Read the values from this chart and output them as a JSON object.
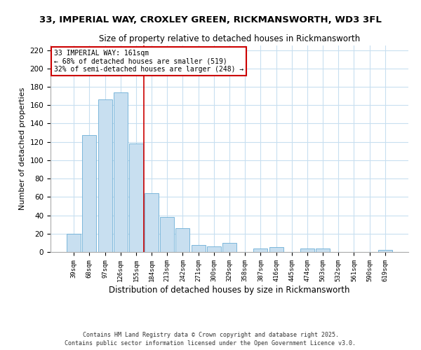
{
  "title1": "33, IMPERIAL WAY, CROXLEY GREEN, RICKMANSWORTH, WD3 3FL",
  "title2": "Size of property relative to detached houses in Rickmansworth",
  "xlabel": "Distribution of detached houses by size in Rickmansworth",
  "ylabel": "Number of detached properties",
  "bar_labels": [
    "39sqm",
    "68sqm",
    "97sqm",
    "126sqm",
    "155sqm",
    "184sqm",
    "213sqm",
    "242sqm",
    "271sqm",
    "300sqm",
    "329sqm",
    "358sqm",
    "387sqm",
    "416sqm",
    "445sqm",
    "474sqm",
    "503sqm",
    "532sqm",
    "561sqm",
    "590sqm",
    "619sqm"
  ],
  "bar_values": [
    20,
    127,
    166,
    174,
    118,
    64,
    38,
    26,
    8,
    6,
    10,
    0,
    4,
    5,
    0,
    4,
    4,
    0,
    0,
    0,
    2
  ],
  "bar_color": "#c8dff0",
  "bar_edge_color": "#6baed6",
  "vline_x": 4.5,
  "vline_color": "#cc0000",
  "annotation_title": "33 IMPERIAL WAY: 161sqm",
  "annotation_line1": "← 68% of detached houses are smaller (519)",
  "annotation_line2": "32% of semi-detached houses are larger (248) →",
  "annotation_box_color": "#ffffff",
  "annotation_box_edge": "#cc0000",
  "ylim": [
    0,
    225
  ],
  "yticks": [
    0,
    20,
    40,
    60,
    80,
    100,
    120,
    140,
    160,
    180,
    200,
    220
  ],
  "footer1": "Contains HM Land Registry data © Crown copyright and database right 2025.",
  "footer2": "Contains public sector information licensed under the Open Government Licence v3.0.",
  "background_color": "#ffffff",
  "grid_color": "#c8dff0"
}
